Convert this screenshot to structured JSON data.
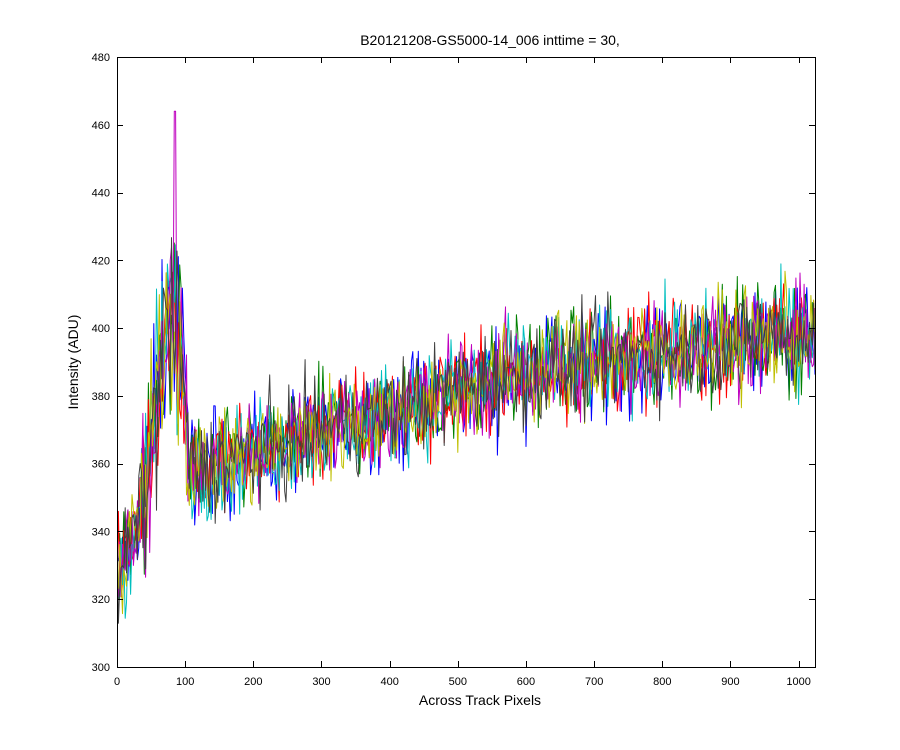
{
  "chart_data": {
    "type": "line",
    "title": "B20121208-GS5000-14_006 inttime = 30,",
    "xlabel": "Across Track Pixels",
    "ylabel": "Intensity (ADU)",
    "xlim": [
      0,
      1024
    ],
    "ylim": [
      300,
      480
    ],
    "xticks": [
      0,
      100,
      200,
      300,
      400,
      500,
      600,
      700,
      800,
      900,
      1000
    ],
    "yticks": [
      300,
      320,
      340,
      360,
      380,
      400,
      420,
      440,
      460,
      480
    ],
    "grid": false,
    "legend": "none",
    "series_count": 7,
    "series_colors": [
      "#0000ff",
      "#008000",
      "#ff0000",
      "#00bfbf",
      "#bf00bf",
      "#bfbf00",
      "#404040"
    ],
    "trend": {
      "x": [
        0,
        10,
        25,
        40,
        50,
        60,
        70,
        80,
        90,
        100,
        105,
        120,
        150,
        200,
        250,
        300,
        400,
        500,
        600,
        700,
        800,
        900,
        1000,
        1024
      ],
      "y": [
        325,
        330,
        340,
        352,
        360,
        365,
        370,
        372,
        372,
        368,
        360,
        358,
        360,
        363,
        366,
        370,
        375,
        382,
        387,
        390,
        393,
        396,
        398,
        399
      ]
    },
    "spike_region": {
      "x_range": [
        38,
        102
      ],
      "peak_x": 85,
      "peak_y": 464,
      "typical_high": 425
    },
    "noise_amplitude_adu": 14,
    "y_min_observed": 310,
    "y_max_observed": 464
  }
}
